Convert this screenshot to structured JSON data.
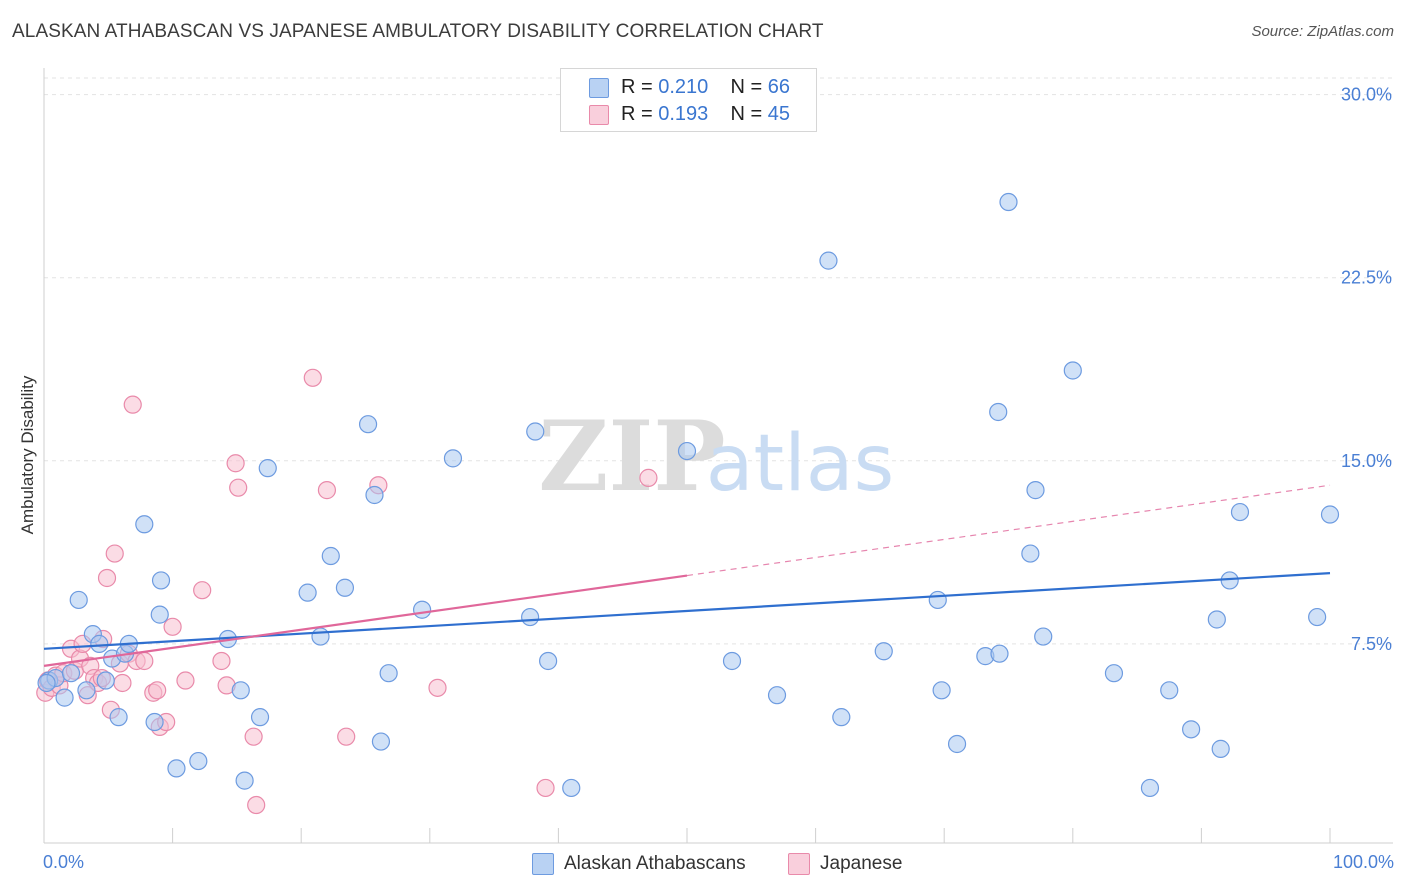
{
  "title": "ALASKAN ATHABASCAN VS JAPANESE AMBULATORY DISABILITY CORRELATION CHART",
  "source": "Source: ZipAtlas.com",
  "watermark": {
    "zip": "ZIP",
    "atlas": "atlas"
  },
  "colors": {
    "blue_fill": "#a9c8f0",
    "blue_stroke": "#6d9be0",
    "blue_line": "#2f6fcf",
    "pink_fill": "#f7bfd0",
    "pink_stroke": "#e98aaa",
    "pink_line": "#e0679a",
    "tick_text": "#4a7fd4",
    "grid": "#e3e3e3"
  },
  "legend": {
    "rows": [
      {
        "r_label": "R = ",
        "r_value": "0.210",
        "n_label": "N = ",
        "n_value": "66"
      },
      {
        "r_label": "R = ",
        "r_value": "0.193",
        "n_label": "N = ",
        "n_value": "45"
      }
    ]
  },
  "bottom_legend": [
    "Alaskan Athabascans",
    "Japanese"
  ],
  "chart_data": {
    "type": "scatter",
    "title": "ALASKAN ATHABASCAN VS JAPANESE AMBULATORY DISABILITY CORRELATION CHART",
    "xlabel": "",
    "ylabel": "Ambulatory Disability",
    "xlim": [
      0,
      100
    ],
    "ylim": [
      0,
      31.5
    ],
    "x_tick_labels": [
      "0.0%",
      "100.0%"
    ],
    "y_ticks": [
      7.5,
      15.0,
      22.5,
      30.0
    ],
    "y_tick_labels": [
      "7.5%",
      "15.0%",
      "22.5%",
      "30.0%"
    ],
    "series": [
      {
        "name": "Alaskan Athabascans",
        "r": 0.21,
        "n": 66,
        "trend": {
          "x": [
            0,
            100
          ],
          "y": [
            7.3,
            10.4
          ],
          "dashed_from": null
        },
        "points": [
          [
            0.4,
            6.0
          ],
          [
            0.9,
            6.1
          ],
          [
            1.6,
            5.3
          ],
          [
            2.1,
            6.3
          ],
          [
            2.7,
            9.3
          ],
          [
            3.3,
            5.6
          ],
          [
            3.8,
            7.9
          ],
          [
            4.3,
            7.5
          ],
          [
            4.8,
            6.0
          ],
          [
            5.3,
            6.9
          ],
          [
            5.8,
            4.5
          ],
          [
            6.3,
            7.1
          ],
          [
            6.6,
            7.5
          ],
          [
            7.8,
            12.4
          ],
          [
            8.6,
            4.3
          ],
          [
            9.0,
            8.7
          ],
          [
            9.1,
            10.1
          ],
          [
            10.3,
            2.4
          ],
          [
            12.0,
            2.7
          ],
          [
            14.3,
            7.7
          ],
          [
            15.3,
            5.6
          ],
          [
            15.6,
            1.9
          ],
          [
            16.8,
            4.5
          ],
          [
            17.4,
            14.7
          ],
          [
            20.5,
            9.6
          ],
          [
            21.5,
            7.8
          ],
          [
            22.3,
            11.1
          ],
          [
            23.4,
            9.8
          ],
          [
            25.2,
            16.5
          ],
          [
            25.7,
            13.6
          ],
          [
            26.2,
            3.5
          ],
          [
            26.8,
            6.3
          ],
          [
            29.4,
            8.9
          ],
          [
            31.8,
            15.1
          ],
          [
            37.8,
            8.6
          ],
          [
            38.2,
            16.2
          ],
          [
            39.2,
            6.8
          ],
          [
            41.0,
            1.6
          ],
          [
            50.0,
            15.4
          ],
          [
            53.5,
            6.8
          ],
          [
            57.0,
            5.4
          ],
          [
            61.0,
            23.2
          ],
          [
            62.0,
            4.5
          ],
          [
            65.3,
            7.2
          ],
          [
            69.5,
            9.3
          ],
          [
            69.8,
            5.6
          ],
          [
            71.0,
            3.4
          ],
          [
            73.2,
            7.0
          ],
          [
            74.3,
            7.1
          ],
          [
            74.2,
            17.0
          ],
          [
            75.0,
            25.6
          ],
          [
            76.7,
            11.2
          ],
          [
            77.1,
            13.8
          ],
          [
            77.7,
            7.8
          ],
          [
            80.0,
            18.7
          ],
          [
            83.2,
            6.3
          ],
          [
            86.0,
            1.6
          ],
          [
            87.5,
            5.6
          ],
          [
            89.2,
            4.0
          ],
          [
            91.2,
            8.5
          ],
          [
            91.5,
            3.2
          ],
          [
            92.2,
            10.1
          ],
          [
            93.0,
            12.9
          ],
          [
            99.0,
            8.6
          ],
          [
            100.0,
            12.8
          ],
          [
            0.2,
            5.9
          ]
        ]
      },
      {
        "name": "Japanese",
        "r": 0.193,
        "n": 45,
        "trend": {
          "x": [
            0,
            100
          ],
          "y": [
            6.6,
            14.0
          ],
          "dashed_from": 50
        },
        "points": [
          [
            0.1,
            5.5
          ],
          [
            0.3,
            6.0
          ],
          [
            0.6,
            5.7
          ],
          [
            0.9,
            6.2
          ],
          [
            1.2,
            5.8
          ],
          [
            1.5,
            6.3
          ],
          [
            2.1,
            7.3
          ],
          [
            2.4,
            6.4
          ],
          [
            2.8,
            6.9
          ],
          [
            3.0,
            7.5
          ],
          [
            3.4,
            5.4
          ],
          [
            3.6,
            6.6
          ],
          [
            3.9,
            6.1
          ],
          [
            4.2,
            5.9
          ],
          [
            4.6,
            7.7
          ],
          [
            4.9,
            10.2
          ],
          [
            5.2,
            4.8
          ],
          [
            5.5,
            11.2
          ],
          [
            5.9,
            6.7
          ],
          [
            6.1,
            5.9
          ],
          [
            6.6,
            7.1
          ],
          [
            6.9,
            17.3
          ],
          [
            7.2,
            6.8
          ],
          [
            7.8,
            6.8
          ],
          [
            8.5,
            5.5
          ],
          [
            8.8,
            5.6
          ],
          [
            9.0,
            4.1
          ],
          [
            9.5,
            4.3
          ],
          [
            10.0,
            8.2
          ],
          [
            11.0,
            6.0
          ],
          [
            12.3,
            9.7
          ],
          [
            13.8,
            6.8
          ],
          [
            14.2,
            5.8
          ],
          [
            14.9,
            14.9
          ],
          [
            15.1,
            13.9
          ],
          [
            16.3,
            3.7
          ],
          [
            16.5,
            0.9
          ],
          [
            20.9,
            18.4
          ],
          [
            22.0,
            13.8
          ],
          [
            23.5,
            3.7
          ],
          [
            26.0,
            14.0
          ],
          [
            30.6,
            5.7
          ],
          [
            39.0,
            1.6
          ],
          [
            47.0,
            14.3
          ],
          [
            4.5,
            6.1
          ]
        ]
      }
    ]
  }
}
